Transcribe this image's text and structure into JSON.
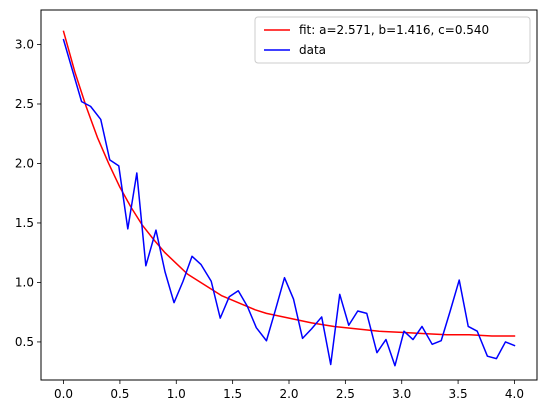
{
  "chart_data": {
    "type": "line",
    "title": "",
    "xlabel": "",
    "ylabel": "",
    "xlim": [
      -0.2,
      4.2
    ],
    "ylim": [
      0.18,
      3.29
    ],
    "xticks": [
      0.0,
      0.5,
      1.0,
      1.5,
      2.0,
      2.5,
      3.0,
      3.5,
      4.0
    ],
    "xtick_labels": [
      "0.0",
      "0.5",
      "1.0",
      "1.5",
      "2.0",
      "2.5",
      "3.0",
      "3.5",
      "4.0"
    ],
    "yticks": [
      0.5,
      1.0,
      1.5,
      2.0,
      2.5,
      3.0
    ],
    "ytick_labels": [
      "0.5",
      "1.0",
      "1.5",
      "2.0",
      "2.5",
      "3.0"
    ],
    "grid": false,
    "legend_position": "top-right",
    "fit": {
      "a": 2.571,
      "b": 1.416,
      "c": 0.54
    },
    "series": [
      {
        "name": "fit: a=2.571, b=1.416, c=0.540",
        "color": "#ff0000",
        "x": [
          0.0,
          0.1,
          0.2,
          0.3,
          0.4,
          0.5,
          0.6,
          0.7,
          0.8,
          0.9,
          1.0,
          1.1,
          1.2,
          1.3,
          1.4,
          1.5,
          1.6,
          1.7,
          1.8,
          1.9,
          2.0,
          2.2,
          2.4,
          2.6,
          2.8,
          3.0,
          3.2,
          3.4,
          3.6,
          3.8,
          4.0
        ],
        "y": [
          3.11,
          2.77,
          2.48,
          2.22,
          2.0,
          1.8,
          1.63,
          1.48,
          1.36,
          1.25,
          1.16,
          1.07,
          1.01,
          0.95,
          0.89,
          0.85,
          0.81,
          0.77,
          0.74,
          0.72,
          0.7,
          0.66,
          0.63,
          0.61,
          0.59,
          0.58,
          0.57,
          0.56,
          0.56,
          0.55,
          0.55
        ]
      },
      {
        "name": "data",
        "color": "#0000ff",
        "x": [
          0.0,
          0.08,
          0.16,
          0.24,
          0.33,
          0.41,
          0.49,
          0.57,
          0.65,
          0.73,
          0.82,
          0.9,
          0.98,
          1.06,
          1.14,
          1.22,
          1.31,
          1.39,
          1.47,
          1.55,
          1.63,
          1.71,
          1.8,
          1.88,
          1.96,
          2.04,
          2.12,
          2.2,
          2.29,
          2.37,
          2.45,
          2.53,
          2.61,
          2.69,
          2.78,
          2.86,
          2.94,
          3.02,
          3.1,
          3.18,
          3.27,
          3.35,
          3.43,
          3.51,
          3.59,
          3.67,
          3.76,
          3.84,
          3.92,
          4.0
        ],
        "y": [
          3.04,
          2.78,
          2.52,
          2.48,
          2.37,
          2.03,
          1.98,
          1.45,
          1.92,
          1.14,
          1.44,
          1.09,
          0.83,
          1.01,
          1.22,
          1.15,
          1.01,
          0.7,
          0.88,
          0.93,
          0.8,
          0.62,
          0.51,
          0.77,
          1.04,
          0.86,
          0.53,
          0.61,
          0.71,
          0.31,
          0.9,
          0.64,
          0.76,
          0.74,
          0.41,
          0.52,
          0.3,
          0.59,
          0.52,
          0.63,
          0.48,
          0.51,
          0.76,
          1.02,
          0.63,
          0.59,
          0.38,
          0.36,
          0.5,
          0.47
        ]
      }
    ]
  }
}
